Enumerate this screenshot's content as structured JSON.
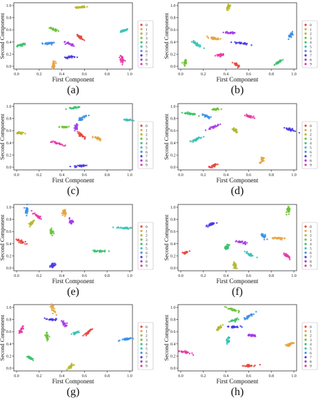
{
  "figure": {
    "legend_labels": [
      "0",
      "1",
      "2",
      "3",
      "4",
      "5",
      "6",
      "7",
      "8",
      "9"
    ],
    "class_colors": [
      "#e8453c",
      "#e8a33c",
      "#b5b828",
      "#6cc23a",
      "#3ac26c",
      "#3ac2b5",
      "#3a8fe8",
      "#4a3ae8",
      "#a63ae8",
      "#e83aa6"
    ]
  },
  "chart_data": [
    {
      "type": "scatter",
      "panel_label": "(a)",
      "xlabel": "First Component",
      "ylabel": "Second Component",
      "xlim": [
        0,
        1.0
      ],
      "ylim": [
        0,
        1.0
      ],
      "xticks": [
        "0.0",
        "0.2",
        "0.4",
        "0.6",
        "0.8",
        "1.0"
      ],
      "yticks": [
        "0.0",
        "0.2",
        "0.4",
        "0.6",
        "0.8",
        "1.0"
      ],
      "grid": false,
      "legend_position": "right",
      "clusters": [
        {
          "label": "0",
          "x": 0.56,
          "y": 0.48
        },
        {
          "label": "1",
          "x": 0.33,
          "y": 0.03
        },
        {
          "label": "2",
          "x": 0.56,
          "y": 0.97
        },
        {
          "label": "3",
          "x": 0.33,
          "y": 0.61
        },
        {
          "label": "4",
          "x": 0.04,
          "y": 0.35
        },
        {
          "label": "5",
          "x": 0.95,
          "y": 0.59
        },
        {
          "label": "6",
          "x": 0.29,
          "y": 0.38
        },
        {
          "label": "7",
          "x": 0.47,
          "y": 0.15
        },
        {
          "label": "8",
          "x": 0.47,
          "y": 0.37
        },
        {
          "label": "9",
          "x": 0.93,
          "y": 0.12
        }
      ]
    },
    {
      "type": "scatter",
      "panel_label": "(b)",
      "xlabel": "First Component",
      "ylabel": "Second Component",
      "xlim": [
        0,
        1.0
      ],
      "ylim": [
        0,
        1.0
      ],
      "xticks": [
        "0.0",
        "0.2",
        "0.4",
        "0.6",
        "0.8",
        "1.0"
      ],
      "yticks": [
        "0.0",
        "0.2",
        "0.4",
        "0.6",
        "0.8",
        "1.0"
      ],
      "grid": false,
      "legend_position": "right",
      "clusters": [
        {
          "label": "0",
          "x": 0.49,
          "y": 0.03
        },
        {
          "label": "1",
          "x": 0.3,
          "y": 0.46
        },
        {
          "label": "2",
          "x": 0.42,
          "y": 0.97
        },
        {
          "label": "3",
          "x": 0.04,
          "y": 0.07
        },
        {
          "label": "4",
          "x": 0.86,
          "y": 0.06
        },
        {
          "label": "5",
          "x": 0.14,
          "y": 0.37
        },
        {
          "label": "6",
          "x": 0.97,
          "y": 0.51
        },
        {
          "label": "7",
          "x": 0.53,
          "y": 0.38
        },
        {
          "label": "8",
          "x": 0.43,
          "y": 0.55
        },
        {
          "label": "9",
          "x": 0.35,
          "y": 0.19
        }
      ]
    },
    {
      "type": "scatter",
      "panel_label": "(c)",
      "xlabel": "First Component",
      "ylabel": "Second Component",
      "xlim": [
        0,
        1.0
      ],
      "ylim": [
        0,
        1.0
      ],
      "xticks": [
        "0.0",
        "0.2",
        "0.4",
        "0.6",
        "0.8",
        "1.0"
      ],
      "yticks": [
        "0.0",
        "0.2",
        "0.4",
        "0.6",
        "0.8",
        "1.0"
      ],
      "grid": false,
      "legend_position": "right",
      "clusters": [
        {
          "label": "0",
          "x": 0.58,
          "y": 0.52
        },
        {
          "label": "1",
          "x": 0.72,
          "y": 0.47
        },
        {
          "label": "2",
          "x": 0.04,
          "y": 0.56
        },
        {
          "label": "3",
          "x": 0.42,
          "y": 0.66
        },
        {
          "label": "4",
          "x": 0.52,
          "y": 0.98
        },
        {
          "label": "5",
          "x": 0.98,
          "y": 0.78
        },
        {
          "label": "6",
          "x": 0.59,
          "y": 0.82
        },
        {
          "label": "7",
          "x": 0.56,
          "y": 0.02
        },
        {
          "label": "8",
          "x": 0.53,
          "y": 0.65
        },
        {
          "label": "9",
          "x": 0.37,
          "y": 0.39
        }
      ]
    },
    {
      "type": "scatter",
      "panel_label": "(d)",
      "xlabel": "First Component",
      "ylabel": "Second Component",
      "xlim": [
        0,
        1.0
      ],
      "ylim": [
        0,
        1.0
      ],
      "xticks": [
        "0.0",
        "0.2",
        "0.4",
        "0.6",
        "0.8",
        "1.0"
      ],
      "yticks": [
        "0.0",
        "0.2",
        "0.4",
        "0.6",
        "0.8",
        "1.0"
      ],
      "grid": false,
      "legend_position": "right",
      "clusters": [
        {
          "label": "0",
          "x": 0.29,
          "y": 0.02
        },
        {
          "label": "1",
          "x": 0.72,
          "y": 0.12
        },
        {
          "label": "2",
          "x": 0.48,
          "y": 0.6
        },
        {
          "label": "3",
          "x": 0.31,
          "y": 0.95
        },
        {
          "label": "4",
          "x": 0.08,
          "y": 0.88
        },
        {
          "label": "5",
          "x": 0.14,
          "y": 0.46
        },
        {
          "label": "6",
          "x": 0.23,
          "y": 0.84
        },
        {
          "label": "7",
          "x": 0.96,
          "y": 0.62
        },
        {
          "label": "8",
          "x": 0.29,
          "y": 0.66
        },
        {
          "label": "9",
          "x": 0.6,
          "y": 0.84
        }
      ]
    },
    {
      "type": "scatter",
      "panel_label": "(e)",
      "xlabel": "First Component",
      "ylabel": "Second Component",
      "xlim": [
        0,
        1.0
      ],
      "ylim": [
        0,
        1.0
      ],
      "xticks": [
        "0.0",
        "0.2",
        "0.4",
        "0.6",
        "0.8",
        "1.0"
      ],
      "yticks": [
        "0.0",
        "0.2",
        "0.4",
        "0.6",
        "0.8",
        "1.0"
      ],
      "grid": false,
      "legend_position": "right",
      "clusters": [
        {
          "label": "0",
          "x": 0.04,
          "y": 0.43
        },
        {
          "label": "1",
          "x": 0.42,
          "y": 0.91
        },
        {
          "label": "2",
          "x": 0.13,
          "y": 0.74
        },
        {
          "label": "3",
          "x": 0.31,
          "y": 0.59
        },
        {
          "label": "4",
          "x": 0.73,
          "y": 0.28
        },
        {
          "label": "5",
          "x": 0.95,
          "y": 0.66
        },
        {
          "label": "6",
          "x": 0.09,
          "y": 0.95
        },
        {
          "label": "7",
          "x": 0.32,
          "y": 0.04
        },
        {
          "label": "8",
          "x": 0.48,
          "y": 0.76
        },
        {
          "label": "9",
          "x": 0.19,
          "y": 0.85
        }
      ]
    },
    {
      "type": "scatter",
      "panel_label": "(f)",
      "xlabel": "First Component",
      "ylabel": "Second Component",
      "xlim": [
        0,
        1.0
      ],
      "ylim": [
        0,
        1.0
      ],
      "xticks": [
        "0.0",
        "0.2",
        "0.4",
        "0.6",
        "0.8",
        "1.0"
      ],
      "yticks": [
        "0.0",
        "0.2",
        "0.4",
        "0.6",
        "0.8",
        "1.0"
      ],
      "grid": false,
      "legend_position": "right",
      "clusters": [
        {
          "label": "0",
          "x": 0.04,
          "y": 0.25
        },
        {
          "label": "1",
          "x": 0.86,
          "y": 0.49
        },
        {
          "label": "2",
          "x": 0.48,
          "y": 0.04
        },
        {
          "label": "3",
          "x": 0.95,
          "y": 0.96
        },
        {
          "label": "4",
          "x": 0.41,
          "y": 0.35
        },
        {
          "label": "5",
          "x": 0.61,
          "y": 0.22
        },
        {
          "label": "6",
          "x": 0.74,
          "y": 0.52
        },
        {
          "label": "7",
          "x": 0.26,
          "y": 0.71
        },
        {
          "label": "8",
          "x": 0.55,
          "y": 0.42
        },
        {
          "label": "9",
          "x": 0.94,
          "y": 0.2
        }
      ]
    },
    {
      "type": "scatter",
      "panel_label": "(g)",
      "xlabel": "First Component",
      "ylabel": "Second Component",
      "xlim": [
        0,
        1.0
      ],
      "ylim": [
        0,
        1.0
      ],
      "xticks": [
        "0.0",
        "0.2",
        "0.4",
        "0.6",
        "0.8",
        "1.0"
      ],
      "yticks": [
        "0.0",
        "0.2",
        "0.4",
        "0.6",
        "0.8",
        "1.0"
      ],
      "grid": false,
      "legend_position": "right",
      "clusters": [
        {
          "label": "0",
          "x": 0.63,
          "y": 0.59
        },
        {
          "label": "1",
          "x": 0.32,
          "y": 0.98
        },
        {
          "label": "2",
          "x": 0.48,
          "y": 0.03
        },
        {
          "label": "3",
          "x": 0.27,
          "y": 0.53
        },
        {
          "label": "4",
          "x": 0.12,
          "y": 0.17
        },
        {
          "label": "5",
          "x": 0.52,
          "y": 0.58
        },
        {
          "label": "6",
          "x": 0.97,
          "y": 0.48
        },
        {
          "label": "7",
          "x": 0.31,
          "y": 0.8
        },
        {
          "label": "8",
          "x": 0.42,
          "y": 0.73
        },
        {
          "label": "9",
          "x": 0.04,
          "y": 0.63
        }
      ]
    },
    {
      "type": "scatter",
      "panel_label": "(h)",
      "xlabel": "First Component",
      "ylabel": "Second Component",
      "xlim": [
        0,
        1.0
      ],
      "ylim": [
        0,
        1.0
      ],
      "xticks": [
        "0.0",
        "0.2",
        "0.4",
        "0.6",
        "0.8",
        "1.0"
      ],
      "yticks": [
        "0.0",
        "0.2",
        "0.4",
        "0.6",
        "0.8",
        "1.0"
      ],
      "grid": false,
      "legend_position": "right",
      "clusters": [
        {
          "label": "0",
          "x": 0.61,
          "y": 0.04
        },
        {
          "label": "1",
          "x": 0.96,
          "y": 0.39
        },
        {
          "label": "2",
          "x": 0.34,
          "y": 0.66
        },
        {
          "label": "3",
          "x": 0.46,
          "y": 0.96
        },
        {
          "label": "4",
          "x": 0.48,
          "y": 0.79
        },
        {
          "label": "5",
          "x": 0.42,
          "y": 0.47
        },
        {
          "label": "6",
          "x": 0.6,
          "y": 0.85
        },
        {
          "label": "7",
          "x": 0.47,
          "y": 0.68
        },
        {
          "label": "8",
          "x": 0.63,
          "y": 0.54
        },
        {
          "label": "9",
          "x": 0.05,
          "y": 0.26
        }
      ]
    }
  ]
}
